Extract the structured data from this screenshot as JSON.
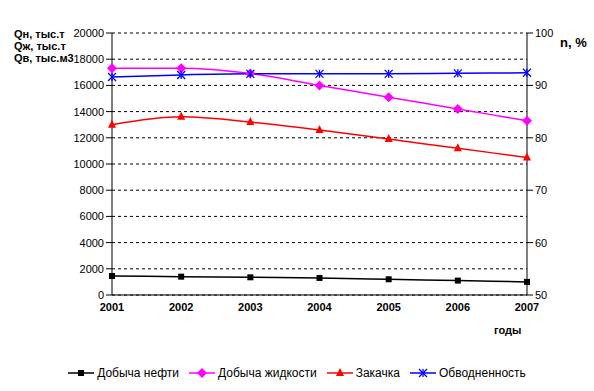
{
  "chart_data": {
    "type": "line",
    "categories": [
      "2001",
      "2002",
      "2003",
      "2004",
      "2005",
      "2006",
      "2007"
    ],
    "xlabel": "годы",
    "ylabel": [
      "Qн, тыс.т",
      "Qж, тыс.т",
      "Qв, тыс.м3"
    ],
    "y2label": "n, %",
    "ylim": [
      0,
      20000
    ],
    "yticks": [
      0,
      2000,
      4000,
      6000,
      8000,
      10000,
      12000,
      14000,
      16000,
      18000,
      20000
    ],
    "y2lim": [
      50,
      100
    ],
    "y2ticks": [
      50,
      60,
      70,
      80,
      90,
      100
    ],
    "grid": true,
    "legend": "bottom",
    "series": [
      {
        "name": "Добыча нефти",
        "color": "#000000",
        "marker": "square",
        "line_style": "solid",
        "values": [
          1450,
          1400,
          1350,
          1300,
          1200,
          1100,
          1000
        ]
      },
      {
        "name": "Добыча жидкости",
        "color": "#ff00ff",
        "marker": "diamond",
        "line_style": "solid",
        "values": [
          17300,
          17300,
          16900,
          16000,
          15100,
          14200,
          13300
        ]
      },
      {
        "name": "Закачка",
        "color": "#ff0000",
        "marker": "triangle",
        "line_style": "solid",
        "values": [
          13000,
          13600,
          13200,
          12600,
          11900,
          11200,
          10500
        ]
      },
      {
        "name": "Обводненность",
        "color": "#0000ff",
        "marker": "star",
        "line_style": "solid",
        "axis": "y2",
        "values": [
          91.6,
          92,
          92.2,
          92.2,
          92.2,
          92.3,
          92.4
        ]
      }
    ]
  }
}
